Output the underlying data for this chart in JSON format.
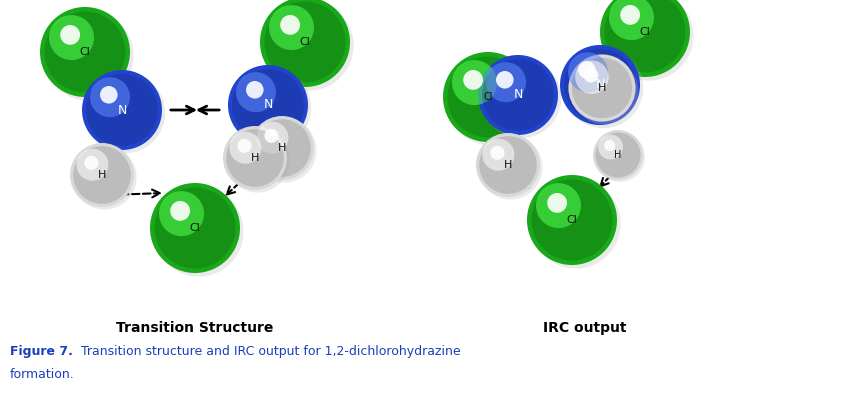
{
  "fig_width": 8.57,
  "fig_height": 3.96,
  "dpi": 100,
  "background_color": "#ffffff",
  "cl_color": "#19a819",
  "cl_dark": "#0d6e0d",
  "n_color": "#2244cc",
  "n_dark": "#112288",
  "h_color": "#d8d8d8",
  "h_dark": "#999999",
  "caption_color": "#1a3fbb",
  "title1": "Transition Structure",
  "title2": "IRC output",
  "caption_bold": "Figure 7.",
  "caption_rest": "  Transition structure and IRC output for 1,2-dichlorohydrazine",
  "caption_line2": "formation."
}
